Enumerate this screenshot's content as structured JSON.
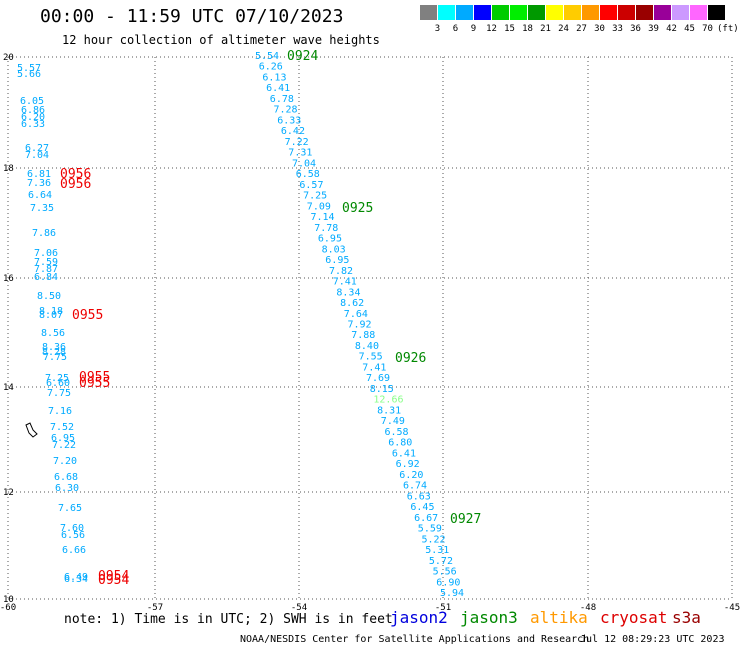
{
  "title": "00:00 - 11:59 UTC 07/10/2023",
  "subtitle": "12 hour collection of altimeter wave heights",
  "legend": {
    "colors": [
      "#808080",
      "#00ffff",
      "#00aaff",
      "#0000ff",
      "#00cc00",
      "#00ee00",
      "#009900",
      "#ffff00",
      "#ffcc00",
      "#ff9900",
      "#ff0000",
      "#cc0000",
      "#990000",
      "#990099",
      "#cc99ff",
      "#ff66ff",
      "#000000"
    ],
    "labels": [
      "3",
      "6",
      "9",
      "12",
      "15",
      "18",
      "21",
      "24",
      "27",
      "30",
      "33",
      "36",
      "39",
      "42",
      "45",
      "70",
      "(ft)"
    ]
  },
  "x_ticks": [
    "-60",
    "-57",
    "-54",
    "-51",
    "-48",
    "-45"
  ],
  "y_ticks": [
    "20",
    "18",
    "16",
    "14",
    "12",
    "10"
  ],
  "colors": {
    "cyan": "#00aaff",
    "green": "#008800",
    "red": "#ee0000",
    "light_green": "#88ff88",
    "grid": "#555555"
  },
  "track_main": {
    "values": [
      "5.54",
      "6.26",
      "6.13",
      "6.41",
      "6.78",
      "7.28",
      "6.33",
      "6.42",
      "7.22",
      "7.31",
      "7.04",
      "6.58",
      "6.57",
      "7.25",
      "7.09",
      "7.14",
      "7.78",
      "6.95",
      "8.03",
      "6.95",
      "7.82",
      "7.41",
      "8.34",
      "8.62",
      "7.64",
      "7.92",
      "7.88",
      "8.40",
      "7.55",
      "7.41",
      "7.69",
      "8.15",
      "12.66",
      "8.31",
      "7.49",
      "6.58",
      "6.80",
      "6.41",
      "6.92",
      "6.20",
      "6.74",
      "6.63",
      "6.45",
      "6.67",
      "5.59",
      "5.22",
      "5.31",
      "5.72",
      "5.56",
      "6.90",
      "5.94"
    ],
    "highlight_index": 32
  },
  "track_left": {
    "values": [
      "5.57",
      "5.66",
      "6.05",
      "6.86",
      "6.20",
      "6.33",
      "6.27",
      "7.04",
      "6.81",
      "7.36",
      "6.64",
      "7.35",
      "7.86",
      "7.06",
      "7.59",
      "7.87",
      "6.84",
      "8.50",
      "8.18",
      "8.07",
      "8.56",
      "8.36",
      "8.28",
      "7.75",
      "7.25",
      "6.60",
      "7.75",
      "7.16",
      "7.52",
      "6.95",
      "7.22",
      "7.20",
      "6.68",
      "6.30",
      "7.65",
      "7.60",
      "6.56",
      "6.66",
      "6.49",
      "6.34"
    ]
  },
  "time_labels": [
    {
      "text": "0924",
      "color": "green"
    },
    {
      "text": "0925",
      "color": "green"
    },
    {
      "text": "0926",
      "color": "green"
    },
    {
      "text": "0927",
      "color": "green"
    },
    {
      "text": "0956",
      "color": "red"
    },
    {
      "text": "0956",
      "color": "red"
    },
    {
      "text": "0955",
      "color": "red"
    },
    {
      "text": "0955",
      "color": "red"
    },
    {
      "text": "0955",
      "color": "red"
    },
    {
      "text": "0954",
      "color": "red"
    },
    {
      "text": "0954",
      "color": "red"
    }
  ],
  "note": "note: 1) Time is in UTC; 2) SWH is in feet",
  "satellites": [
    {
      "name": "jason2",
      "color": "#0000dd"
    },
    {
      "name": "jason3",
      "color": "#008800"
    },
    {
      "name": "altika",
      "color": "#ff9900"
    },
    {
      "name": "cryosat",
      "color": "#dd0000"
    },
    {
      "name": "s3a",
      "color": "#990000"
    }
  ],
  "footer_left": "NOAA/NESDIS Center for Satellite Applications and Research",
  "footer_right": "Jul 12 08:29:23 UTC 2023"
}
